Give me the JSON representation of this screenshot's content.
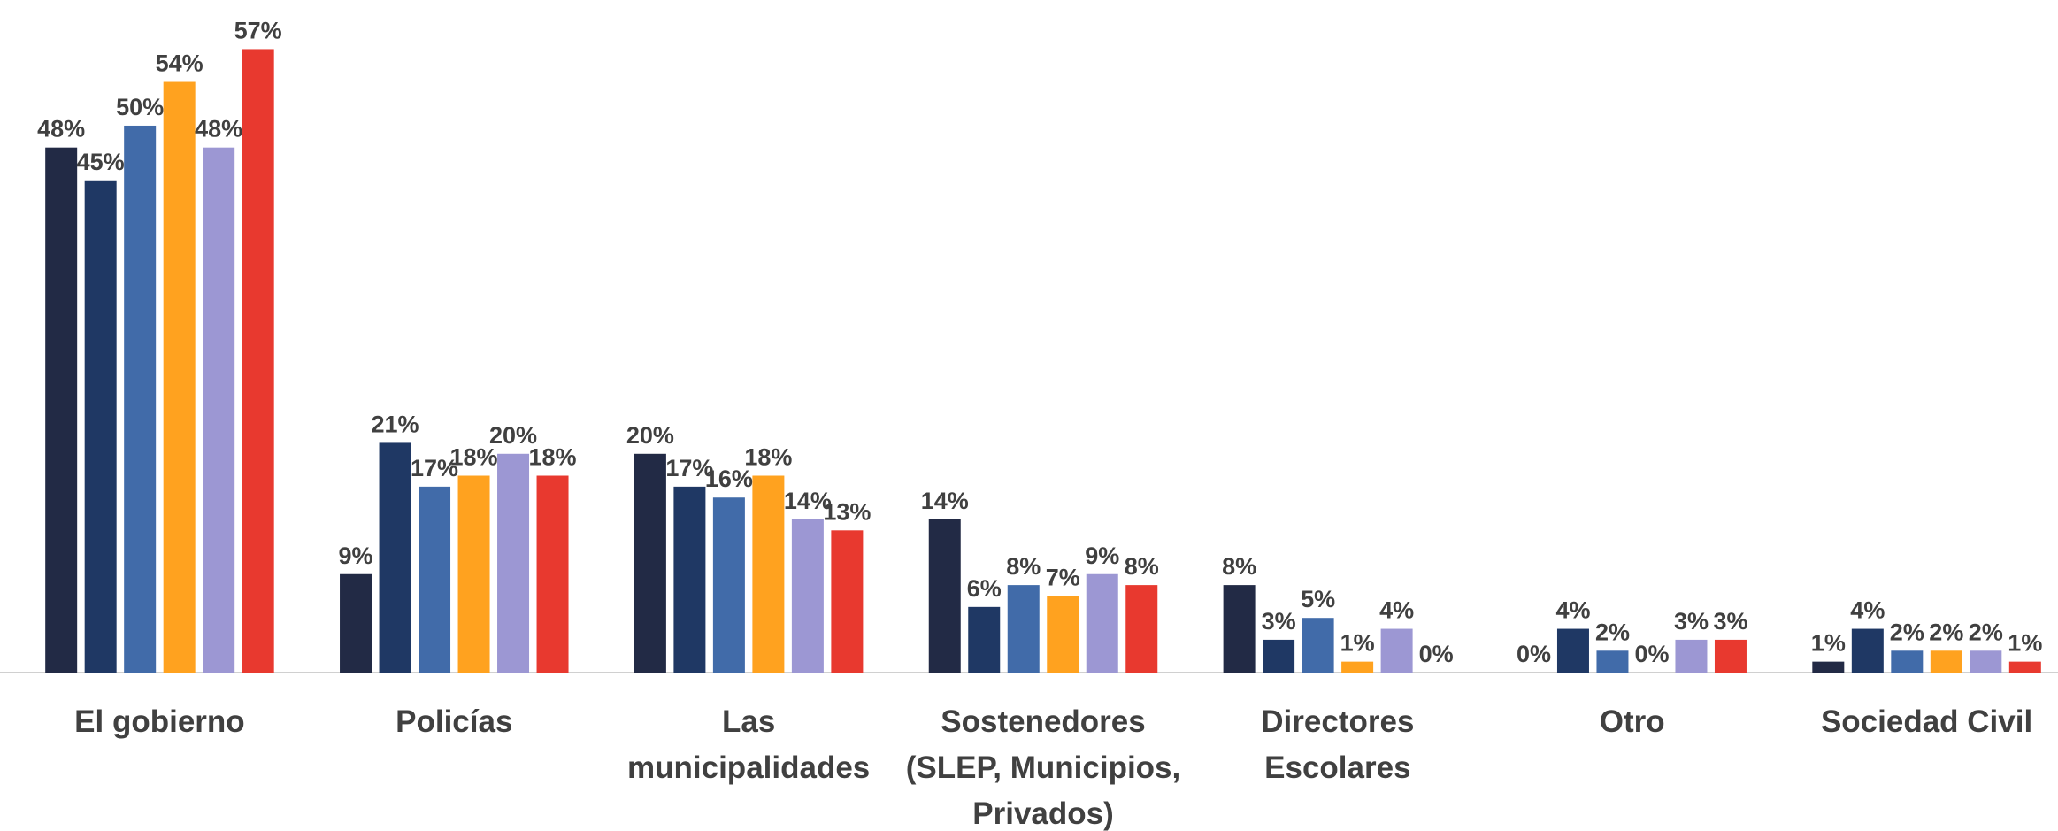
{
  "chart_data": {
    "type": "bar",
    "categories": [
      "El gobierno",
      "Policías",
      "Las municipalidades",
      "Sostenedores (SLEP, Municipios, Privados)",
      "Directores Escolares",
      "Otro",
      "Sociedad Civil"
    ],
    "series": [
      {
        "color": "#222a45",
        "values": [
          48,
          9,
          20,
          14,
          8,
          0,
          1
        ],
        "value_labels": [
          "48%",
          "9%",
          "20%",
          "14%",
          "8%",
          "0%",
          "1%"
        ]
      },
      {
        "color": "#1f3864",
        "values": [
          45,
          21,
          17,
          6,
          3,
          4,
          4
        ],
        "value_labels": [
          "45%",
          "21%",
          "17%",
          "6%",
          "3%",
          "4%",
          "4%"
        ]
      },
      {
        "color": "#416ba9",
        "values": [
          50,
          17,
          16,
          8,
          5,
          2,
          2
        ],
        "value_labels": [
          "50%",
          "17%",
          "16%",
          "8%",
          "5%",
          "2%",
          "2%"
        ]
      },
      {
        "color": "#ffa21f",
        "values": [
          54,
          18,
          18,
          7,
          1,
          0,
          2
        ],
        "value_labels": [
          "54%",
          "18%",
          "18%",
          "7%",
          "1%",
          "0%",
          "2%"
        ]
      },
      {
        "color": "#9c97d3",
        "values": [
          48,
          20,
          14,
          9,
          4,
          3,
          2
        ],
        "value_labels": [
          "48%",
          "20%",
          "14%",
          "9%",
          "4%",
          "3%",
          "2%"
        ]
      },
      {
        "color": "#e8392f",
        "values": [
          57,
          18,
          13,
          8,
          0,
          3,
          1
        ],
        "value_labels": [
          "57%",
          "18%",
          "13%",
          "8%",
          "0%",
          "3%",
          "1%"
        ]
      }
    ],
    "ylim": [
      0,
      61
    ]
  }
}
